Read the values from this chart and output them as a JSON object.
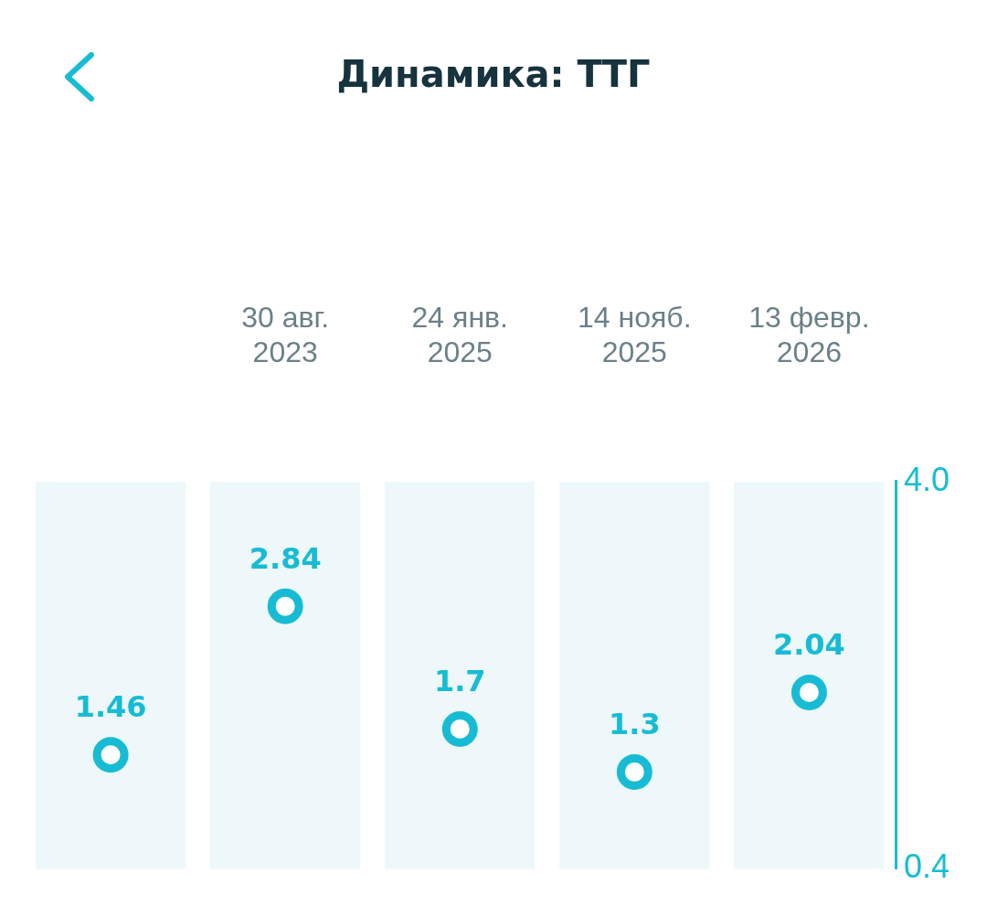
{
  "chart_data": {
    "type": "scatter",
    "title": "Динамика: ТТГ",
    "categories": [
      null,
      "30 авг.\n2023",
      "24 янв.\n2025",
      "14 нояб.\n2025",
      "13 февр.\n2026"
    ],
    "series": [
      {
        "color": "#17bcd4",
        "values": [
          1.46,
          2.84,
          1.7,
          1.3,
          2.04
        ]
      }
    ],
    "ylim": [
      0.4,
      4.0
    ],
    "yticks": [
      {
        "value": 0.4,
        "label": "0.4"
      },
      {
        "value": 4.0,
        "label": "4.0"
      }
    ],
    "grid": "x",
    "legend": false,
    "marker": "circle",
    "data_labels": true
  }
}
